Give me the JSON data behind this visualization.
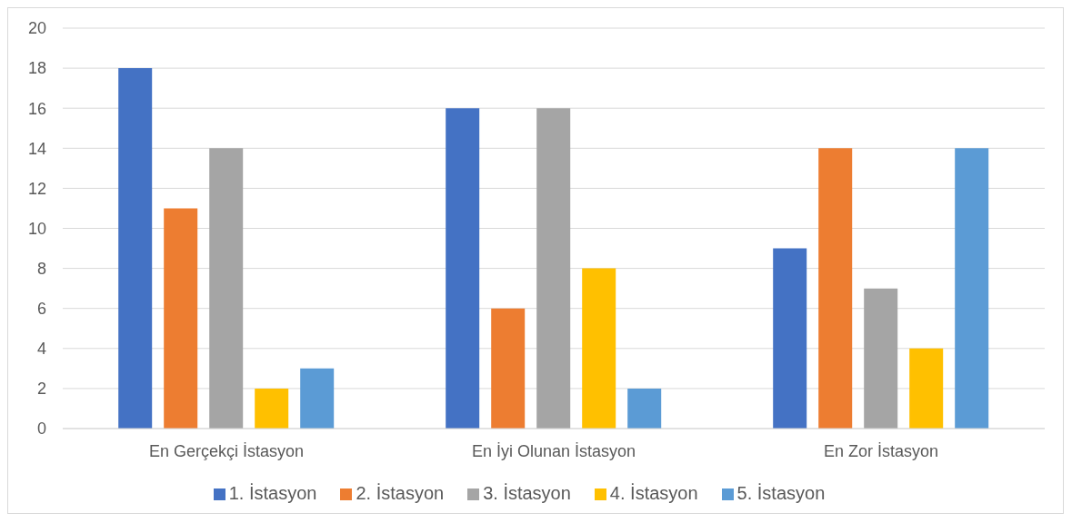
{
  "chart_data": {
    "type": "bar",
    "categories": [
      "En Gerçekçi İstasyon",
      "En İyi Olunan İstasyon",
      "En Zor İstasyon"
    ],
    "series": [
      {
        "name": "1. İstasyon",
        "color": "#4472c4",
        "values": [
          18,
          16,
          9
        ]
      },
      {
        "name": "2. İstasyon",
        "color": "#ed7d31",
        "values": [
          11,
          6,
          14
        ]
      },
      {
        "name": "3. İstasyon",
        "color": "#a5a5a5",
        "values": [
          14,
          16,
          7
        ]
      },
      {
        "name": "4. İstasyon",
        "color": "#ffc000",
        "values": [
          2,
          8,
          4
        ]
      },
      {
        "name": "5. İstasyon",
        "color": "#5b9bd5",
        "values": [
          3,
          2,
          14
        ]
      }
    ],
    "ylim": [
      0,
      20
    ],
    "yticks": [
      0,
      2,
      4,
      6,
      8,
      10,
      12,
      14,
      16,
      18,
      20
    ],
    "grid": "y",
    "legend": "bottom"
  }
}
